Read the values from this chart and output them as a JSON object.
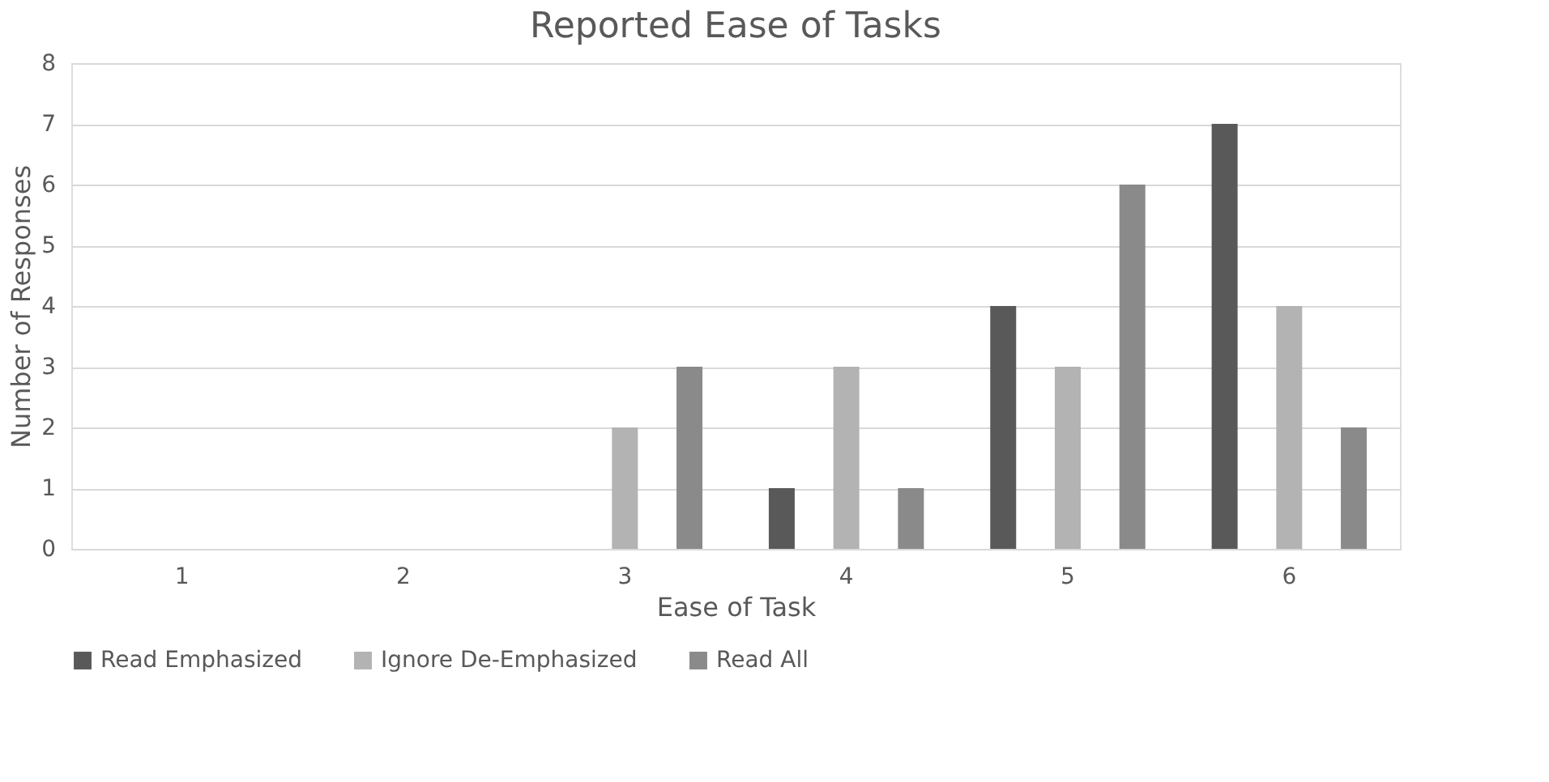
{
  "chart_data": {
    "type": "bar",
    "title": "Reported Ease of Tasks",
    "xlabel": "Ease of Task",
    "ylabel": "Number of Responses",
    "categories": [
      "1",
      "2",
      "3",
      "4",
      "5",
      "6"
    ],
    "series": [
      {
        "name": "Read Emphasized",
        "color": "#595959",
        "values": [
          0,
          0,
          0,
          1,
          4,
          7
        ]
      },
      {
        "name": "Ignore De-Emphasized",
        "color": "#b3b3b3",
        "values": [
          0,
          0,
          2,
          3,
          3,
          4
        ]
      },
      {
        "name": "Read All",
        "color": "#8a8a8a",
        "values": [
          0,
          0,
          3,
          1,
          6,
          2
        ]
      }
    ],
    "ylim": [
      0,
      8
    ],
    "yticks": [
      0,
      1,
      2,
      3,
      4,
      5,
      6,
      7,
      8
    ],
    "grid": "y",
    "legend": "bottom"
  }
}
